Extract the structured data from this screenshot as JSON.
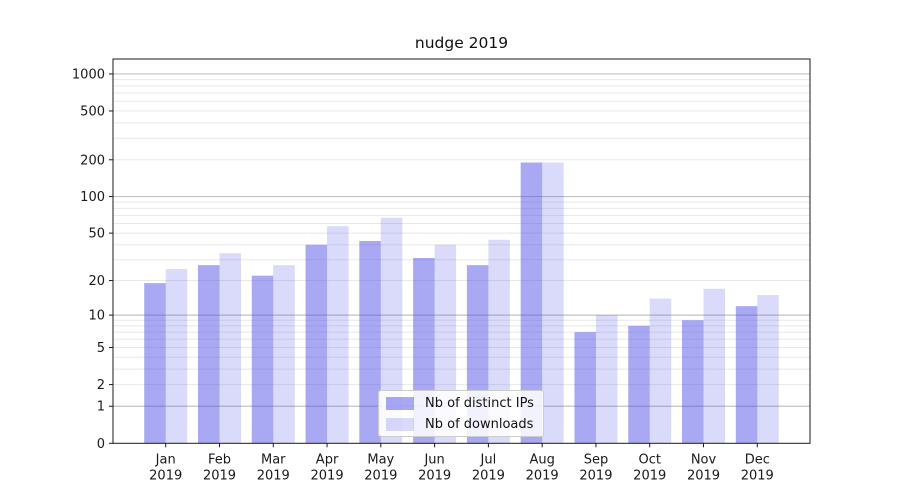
{
  "chart_data": {
    "type": "bar",
    "title": "nudge 2019",
    "categories": [
      "Jan 2019",
      "Feb 2019",
      "Mar 2019",
      "Apr 2019",
      "May 2019",
      "Jun 2019",
      "Jul 2019",
      "Aug 2019",
      "Sep 2019",
      "Oct 2019",
      "Nov 2019",
      "Dec 2019"
    ],
    "series": [
      {
        "name": "Nb of distinct IPs",
        "color": "rgba(70,70,230,0.47)",
        "values": [
          19,
          27,
          22,
          40,
          43,
          31,
          27,
          190,
          7,
          8,
          9,
          12
        ]
      },
      {
        "name": "Nb of downloads",
        "color": "rgba(70,70,230,0.20)",
        "values": [
          25,
          34,
          27,
          57,
          67,
          40,
          44,
          190,
          10,
          14,
          17,
          15
        ]
      }
    ],
    "yscale": "symlog (log10(1+v))",
    "yticks": [
      0,
      1,
      2,
      5,
      10,
      20,
      50,
      100,
      200,
      500,
      1000
    ],
    "grid_major": [
      1,
      10,
      100,
      1000
    ],
    "grid_minor": [
      2,
      3,
      4,
      5,
      6,
      7,
      8,
      9,
      20,
      30,
      40,
      50,
      60,
      70,
      80,
      90,
      200,
      300,
      400,
      500,
      600,
      700,
      800,
      900
    ],
    "ylim": [
      0,
      1320
    ],
    "xlabel": "",
    "ylabel": "",
    "legend_position": "lower center",
    "grid": true,
    "colors": {
      "frame": "#1a1a1a",
      "grid_major": "#c2c2c2",
      "grid_minor": "#e8e8e8",
      "tick_text": "#1a1a1a"
    }
  }
}
